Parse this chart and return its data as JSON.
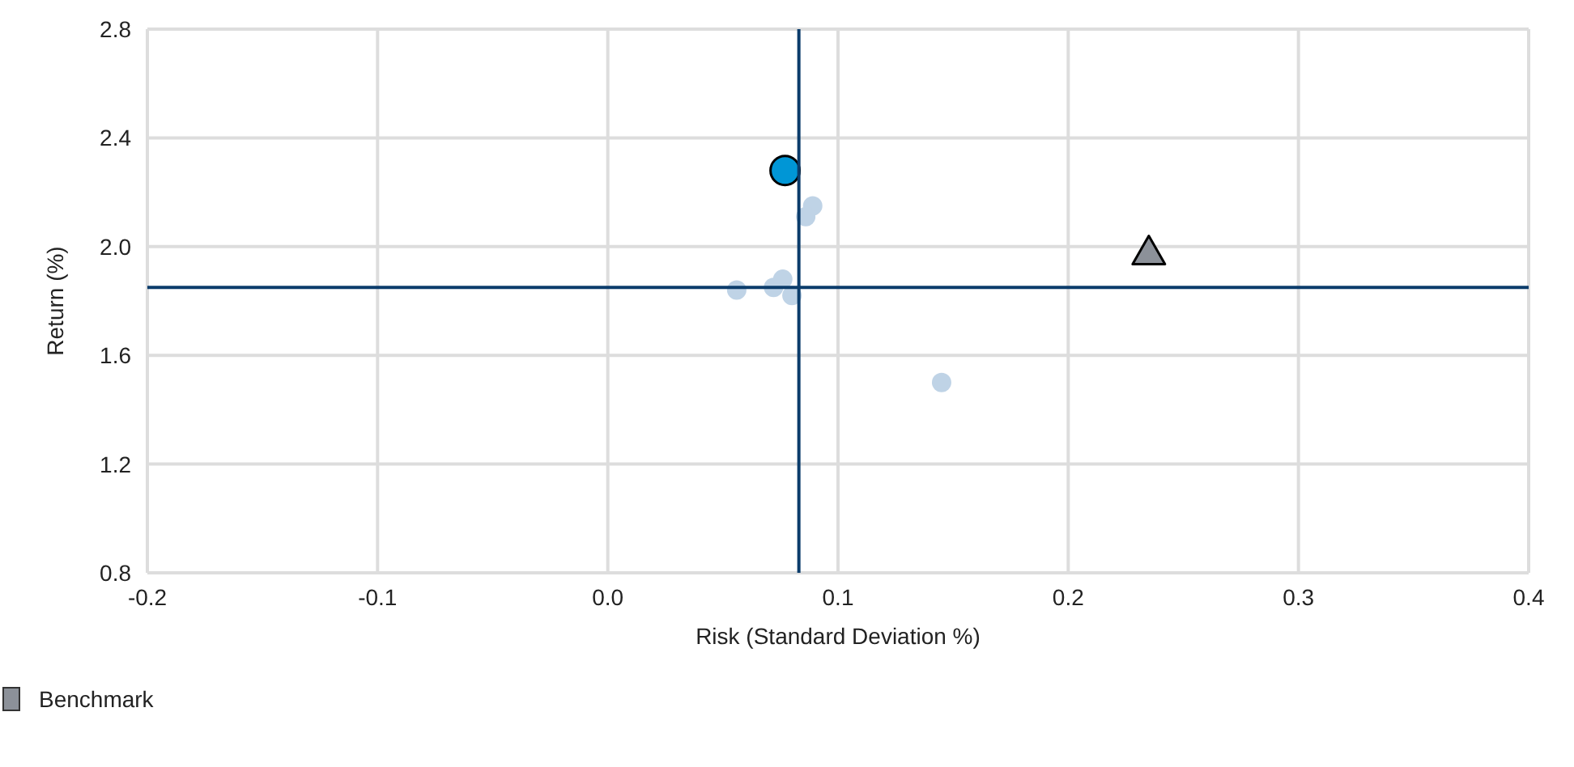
{
  "chart_data": {
    "type": "scatter",
    "xlabel": "Risk (Standard Deviation %)",
    "ylabel": "Return (%)",
    "xlim": [
      -0.2,
      0.4
    ],
    "xticks": [
      -0.2,
      -0.1,
      {
        "value": 0,
        "label": "0.0"
      },
      0.1,
      0.2,
      0.3,
      0.4
    ],
    "ylim": [
      0.8,
      2.8
    ],
    "yticks": [
      {
        "value": 0.8,
        "label": "0.8"
      },
      {
        "value": 1.2,
        "label": "1.2"
      },
      {
        "value": 1.6,
        "label": "1.6"
      },
      {
        "value": 2.0,
        "label": "2.0"
      },
      {
        "value": 2.4,
        "label": "2.4"
      },
      {
        "value": 2.8,
        "label": "2.8"
      }
    ],
    "grid": true,
    "legend": "bottom left",
    "series": [
      {
        "color": "#bfd3e6",
        "marker": "circle",
        "x": [
          0.089,
          0.086,
          0.056,
          0.072,
          0.076,
          0.08,
          0.145
        ],
        "values": [
          2.15,
          2.11,
          1.84,
          1.85,
          1.88,
          1.82,
          1.5
        ]
      },
      {
        "color": "#0096d6",
        "marker": "circle",
        "x": [
          0.077
        ],
        "values": [
          2.28
        ]
      },
      {
        "name": "Benchmark",
        "color": "#8c9199",
        "marker": "triangle",
        "x": [
          0.235
        ],
        "values": [
          1.98
        ]
      }
    ],
    "ref_lines": [
      {
        "axis": "x",
        "value": 0.083,
        "color": "#0b3c6b"
      },
      {
        "axis": "y",
        "value": 1.85,
        "color": "#0b3c6b"
      }
    ]
  }
}
